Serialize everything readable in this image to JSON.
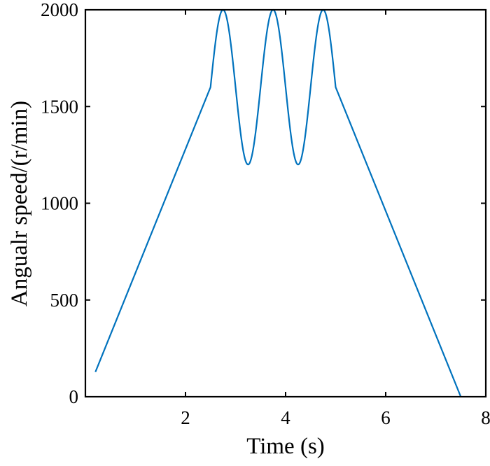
{
  "chart_data": {
    "type": "line",
    "title": "",
    "xlabel": "Time (s)",
    "ylabel": "Angualr speed/(r/min)",
    "xlim": [
      0,
      8
    ],
    "ylim": [
      0,
      2000
    ],
    "xticks": [
      2,
      4,
      6,
      8
    ],
    "xtick_labels": [
      "2",
      "4",
      "6",
      "8"
    ],
    "yticks": [
      0,
      500,
      1000,
      1500,
      2000
    ],
    "ytick_labels": [
      "0",
      "500",
      "1000",
      "1500",
      "2000"
    ],
    "grid": false,
    "line_color": "#0072BD",
    "series": [
      {
        "x": [
          0.2,
          2.5,
          2.75,
          3.0,
          3.25,
          3.5,
          3.75,
          4.0,
          4.25,
          4.5,
          4.75,
          5.0,
          7.5
        ],
        "y": [
          128,
          1600,
          2000,
          1600,
          1200,
          1600,
          2000,
          1600,
          1200,
          1600,
          2000,
          1600,
          0
        ]
      }
    ]
  }
}
